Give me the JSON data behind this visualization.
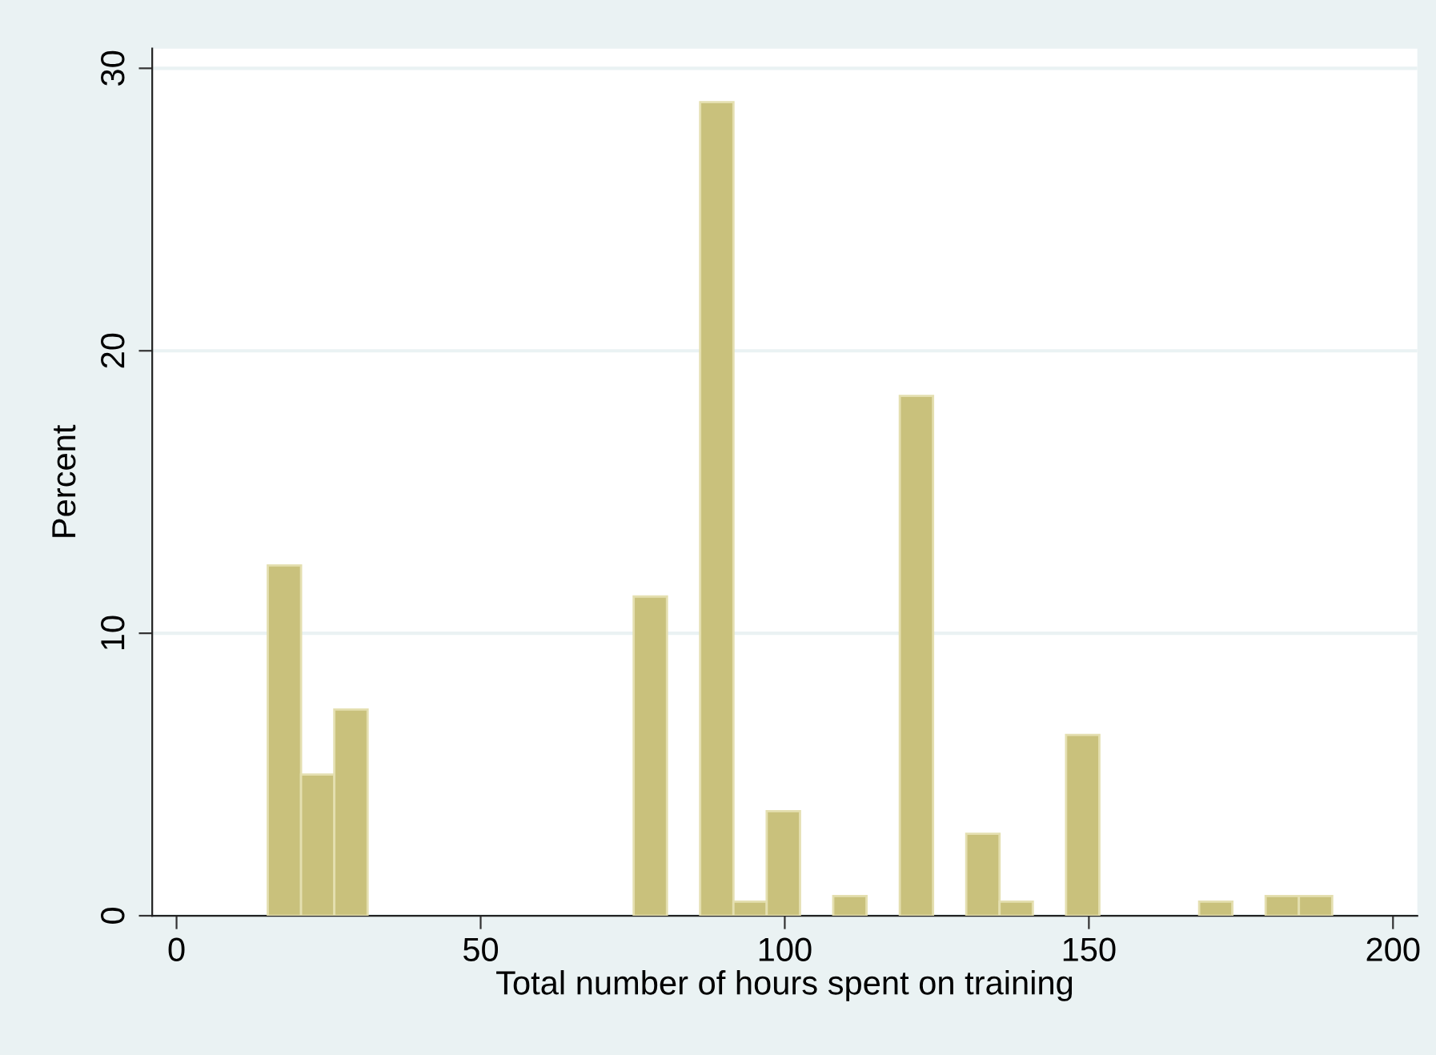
{
  "chart_data": {
    "type": "histogram",
    "xlabel": "Total number of hours spent on training",
    "ylabel": "Percent",
    "bins": [
      15,
      20.47,
      25.94,
      31.41,
      36.88,
      42.34,
      47.81,
      53.28,
      58.75,
      64.22,
      69.69,
      75.16,
      80.63,
      86.09,
      91.56,
      97.03,
      102.5,
      107.97,
      113.44,
      118.91,
      124.38,
      129.84,
      135.31,
      140.78,
      146.25,
      151.72,
      157.19,
      162.66,
      168.13,
      173.59,
      179.06,
      184.53,
      190
    ],
    "values": [
      12.4,
      5.0,
      7.3,
      0,
      0,
      0,
      0,
      0,
      0,
      0,
      0,
      11.3,
      0,
      28.8,
      0.5,
      3.7,
      0,
      0.7,
      0,
      18.4,
      0,
      2.9,
      0.5,
      0,
      6.4,
      0,
      0,
      0,
      0.5,
      0,
      0.7,
      0.7
    ],
    "color": "#c9c17c",
    "xlim": [
      -4,
      204
    ],
    "ylim": [
      0,
      30.7
    ],
    "xticks": [
      0,
      50,
      100,
      150,
      200
    ],
    "yticks": [
      0,
      10,
      20,
      30
    ],
    "grid": "y"
  }
}
